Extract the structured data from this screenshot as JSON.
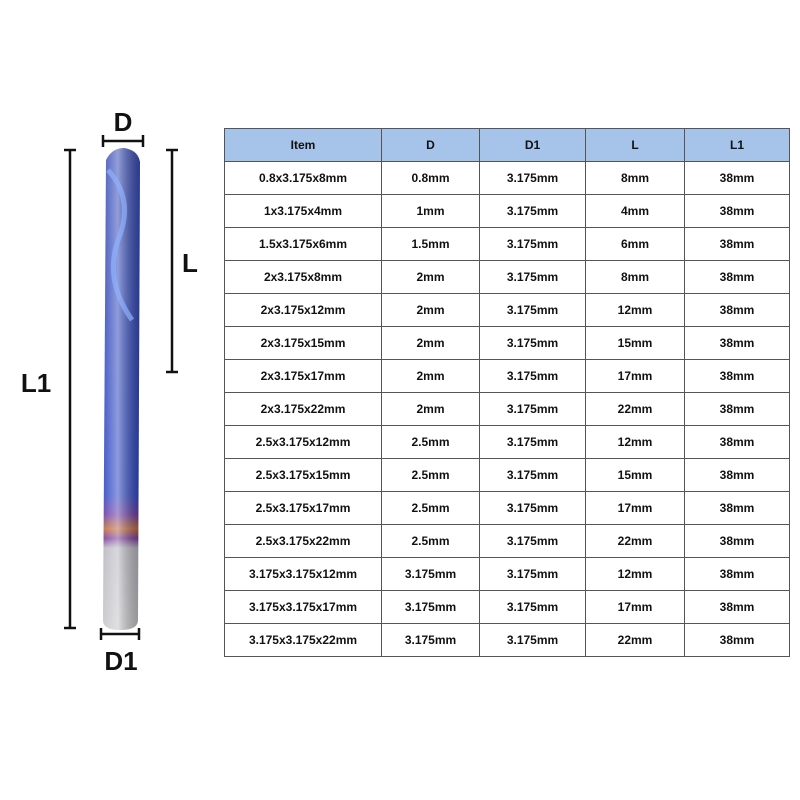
{
  "labels": {
    "d": "D",
    "l": "L",
    "l1": "L1",
    "d1": "D1"
  },
  "table": {
    "header": [
      "Item",
      "D",
      "D1",
      "L",
      "L1"
    ],
    "rows": [
      [
        "0.8x3.175x8mm",
        "0.8mm",
        "3.175mm",
        "8mm",
        "38mm"
      ],
      [
        "1x3.175x4mm",
        "1mm",
        "3.175mm",
        "4mm",
        "38mm"
      ],
      [
        "1.5x3.175x6mm",
        "1.5mm",
        "3.175mm",
        "6mm",
        "38mm"
      ],
      [
        "2x3.175x8mm",
        "2mm",
        "3.175mm",
        "8mm",
        "38mm"
      ],
      [
        "2x3.175x12mm",
        "2mm",
        "3.175mm",
        "12mm",
        "38mm"
      ],
      [
        "2x3.175x15mm",
        "2mm",
        "3.175mm",
        "15mm",
        "38mm"
      ],
      [
        "2x3.175x17mm",
        "2mm",
        "3.175mm",
        "17mm",
        "38mm"
      ],
      [
        "2x3.175x22mm",
        "2mm",
        "3.175mm",
        "22mm",
        "38mm"
      ],
      [
        "2.5x3.175x12mm",
        "2.5mm",
        "3.175mm",
        "12mm",
        "38mm"
      ],
      [
        "2.5x3.175x15mm",
        "2.5mm",
        "3.175mm",
        "15mm",
        "38mm"
      ],
      [
        "2.5x3.175x17mm",
        "2.5mm",
        "3.175mm",
        "17mm",
        "38mm"
      ],
      [
        "2.5x3.175x22mm",
        "2.5mm",
        "3.175mm",
        "22mm",
        "38mm"
      ],
      [
        "3.175x3.175x12mm",
        "3.175mm",
        "3.175mm",
        "12mm",
        "38mm"
      ],
      [
        "3.175x3.175x17mm",
        "3.175mm",
        "3.175mm",
        "17mm",
        "38mm"
      ],
      [
        "3.175x3.175x22mm",
        "3.175mm",
        "3.175mm",
        "22mm",
        "38mm"
      ]
    ]
  }
}
